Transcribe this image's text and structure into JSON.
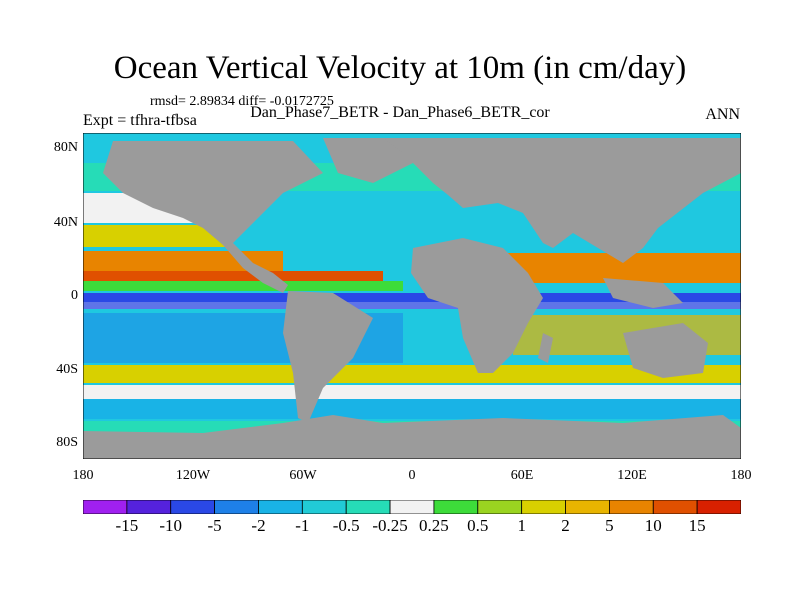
{
  "title": "Ocean Vertical Velocity at 10m (in cm/day)",
  "stats": "rmsd= 2.89834 diff= -0.0172725",
  "expt": "Expt = tfhra-tfbsa",
  "runs": "Dan_Phase7_BETR - Dan_Phase6_BETR_cor",
  "season": "ANN",
  "y_ticks": [
    "80N",
    "40N",
    "0",
    "40S",
    "80S"
  ],
  "x_ticks": [
    "180",
    "120W",
    "60W",
    "0",
    "60E",
    "120E",
    "180"
  ],
  "legend": {
    "labels": [
      "-15",
      "-10",
      "-5",
      "-2",
      "-1",
      "-0.5",
      "-0.25",
      "0.25",
      "0.5",
      "1",
      "2",
      "5",
      "10",
      "15"
    ],
    "colors": [
      "#a020f0",
      "#5522dd",
      "#2a48e6",
      "#1e80e8",
      "#19b3e6",
      "#21cbd6",
      "#26dcb7",
      "#f2f2f2",
      "#3ddc3a",
      "#9ad420",
      "#d8d000",
      "#e8b400",
      "#e88400",
      "#e05000",
      "#d82000"
    ]
  },
  "colors": {
    "land": "#9b9b9b",
    "ocean_bg": "#1fc8e0"
  }
}
